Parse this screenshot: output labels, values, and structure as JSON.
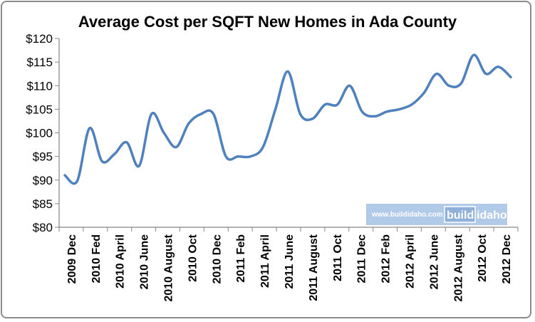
{
  "chart_data": {
    "type": "line",
    "title": "Average Cost per SQFT New Homes in Ada County",
    "xlabel": "",
    "ylabel": "",
    "ylim": [
      80,
      120
    ],
    "ytick_step": 5,
    "ytick_prefix": "$",
    "grid": "none",
    "legend": "none",
    "line_color": "#4f81bd",
    "x_labels": [
      "2009 Dec",
      "2010 Fed",
      "2010 April",
      "2010 June",
      "2010 August",
      "2010 Oct",
      "2010 Dec",
      "2011 Feb",
      "2011 April",
      "2011 June",
      "2011 August",
      "2011 Oct",
      "2011 Dec",
      "2012 Feb",
      "2012 April",
      "2012 June",
      "2012 August",
      "2012 Oct",
      "2012 Dec"
    ],
    "series": [
      {
        "name": "",
        "values": [
          91,
          89.8,
          101,
          94,
          95.5,
          98,
          93,
          104,
          100,
          97,
          102,
          104,
          104,
          95,
          95,
          95,
          97,
          105,
          113,
          104,
          103,
          106,
          106,
          110,
          104.5,
          103.5,
          104.5,
          105,
          106,
          108.5,
          112.5,
          110,
          110.5,
          116.5,
          112.5,
          114,
          111.8
        ]
      }
    ]
  },
  "watermark": {
    "url": "www.buildidaho.com",
    "logo_build": "build",
    "logo_idaho": "idaho"
  }
}
